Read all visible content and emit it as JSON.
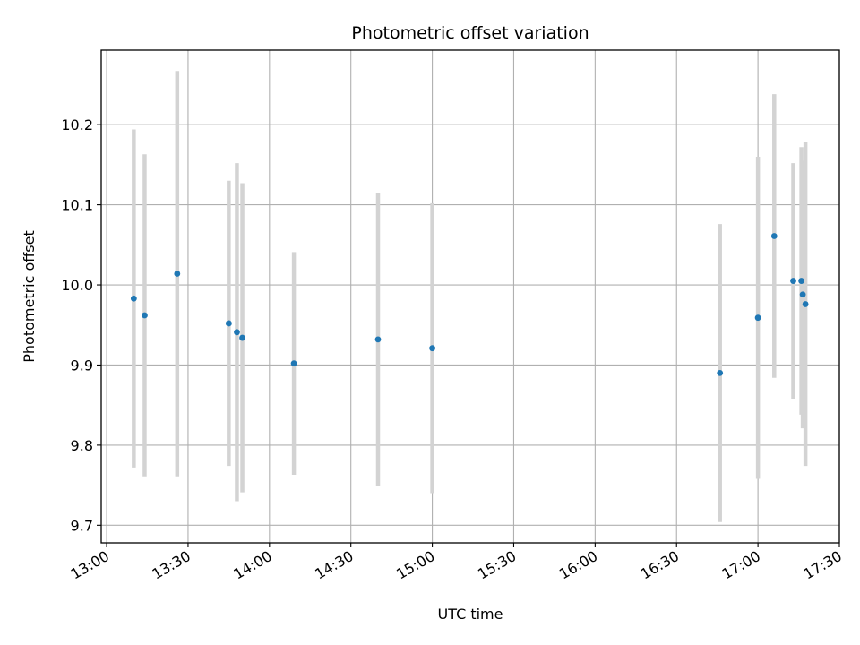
{
  "chart_data": {
    "type": "scatter",
    "title": "Photometric offset variation",
    "xlabel": "UTC time",
    "ylabel": "Photometric offset",
    "x_unit": "time",
    "xlim": [
      "12:58",
      "17:30"
    ],
    "ylim": [
      9.678,
      10.293
    ],
    "x_ticks": [
      "13:00",
      "13:30",
      "14:00",
      "14:30",
      "15:00",
      "15:30",
      "16:00",
      "16:30",
      "17:00",
      "17:30"
    ],
    "y_ticks": [
      "9.7",
      "9.8",
      "9.9",
      "10.0",
      "10.1",
      "10.2"
    ],
    "grid": true,
    "marker_color": "#1f77b4",
    "errorbar_color": "#d3d3d3",
    "points": [
      {
        "x": "13:10",
        "y": 9.983,
        "err": 0.211
      },
      {
        "x": "13:14",
        "y": 9.962,
        "err": 0.201
      },
      {
        "x": "13:26",
        "y": 10.014,
        "err": 0.253
      },
      {
        "x": "13:45",
        "y": 9.952,
        "err": 0.178
      },
      {
        "x": "13:48",
        "y": 9.941,
        "err": 0.211
      },
      {
        "x": "13:50",
        "y": 9.934,
        "err": 0.193
      },
      {
        "x": "14:09",
        "y": 9.902,
        "err": 0.139
      },
      {
        "x": "14:40",
        "y": 9.932,
        "err": 0.183
      },
      {
        "x": "15:00",
        "y": 9.921,
        "err": 0.181
      },
      {
        "x": "16:46",
        "y": 9.89,
        "err": 0.186
      },
      {
        "x": "17:00",
        "y": 9.959,
        "err": 0.201
      },
      {
        "x": "17:06",
        "y": 10.061,
        "err": 0.177
      },
      {
        "x": "17:13",
        "y": 10.005,
        "err": 0.147
      },
      {
        "x": "17:16",
        "y": 10.005,
        "err": 0.167
      },
      {
        "x": "17:16.5",
        "y": 9.988,
        "err": 0.167
      },
      {
        "x": "17:17.5",
        "y": 9.976,
        "err": 0.202
      }
    ]
  }
}
